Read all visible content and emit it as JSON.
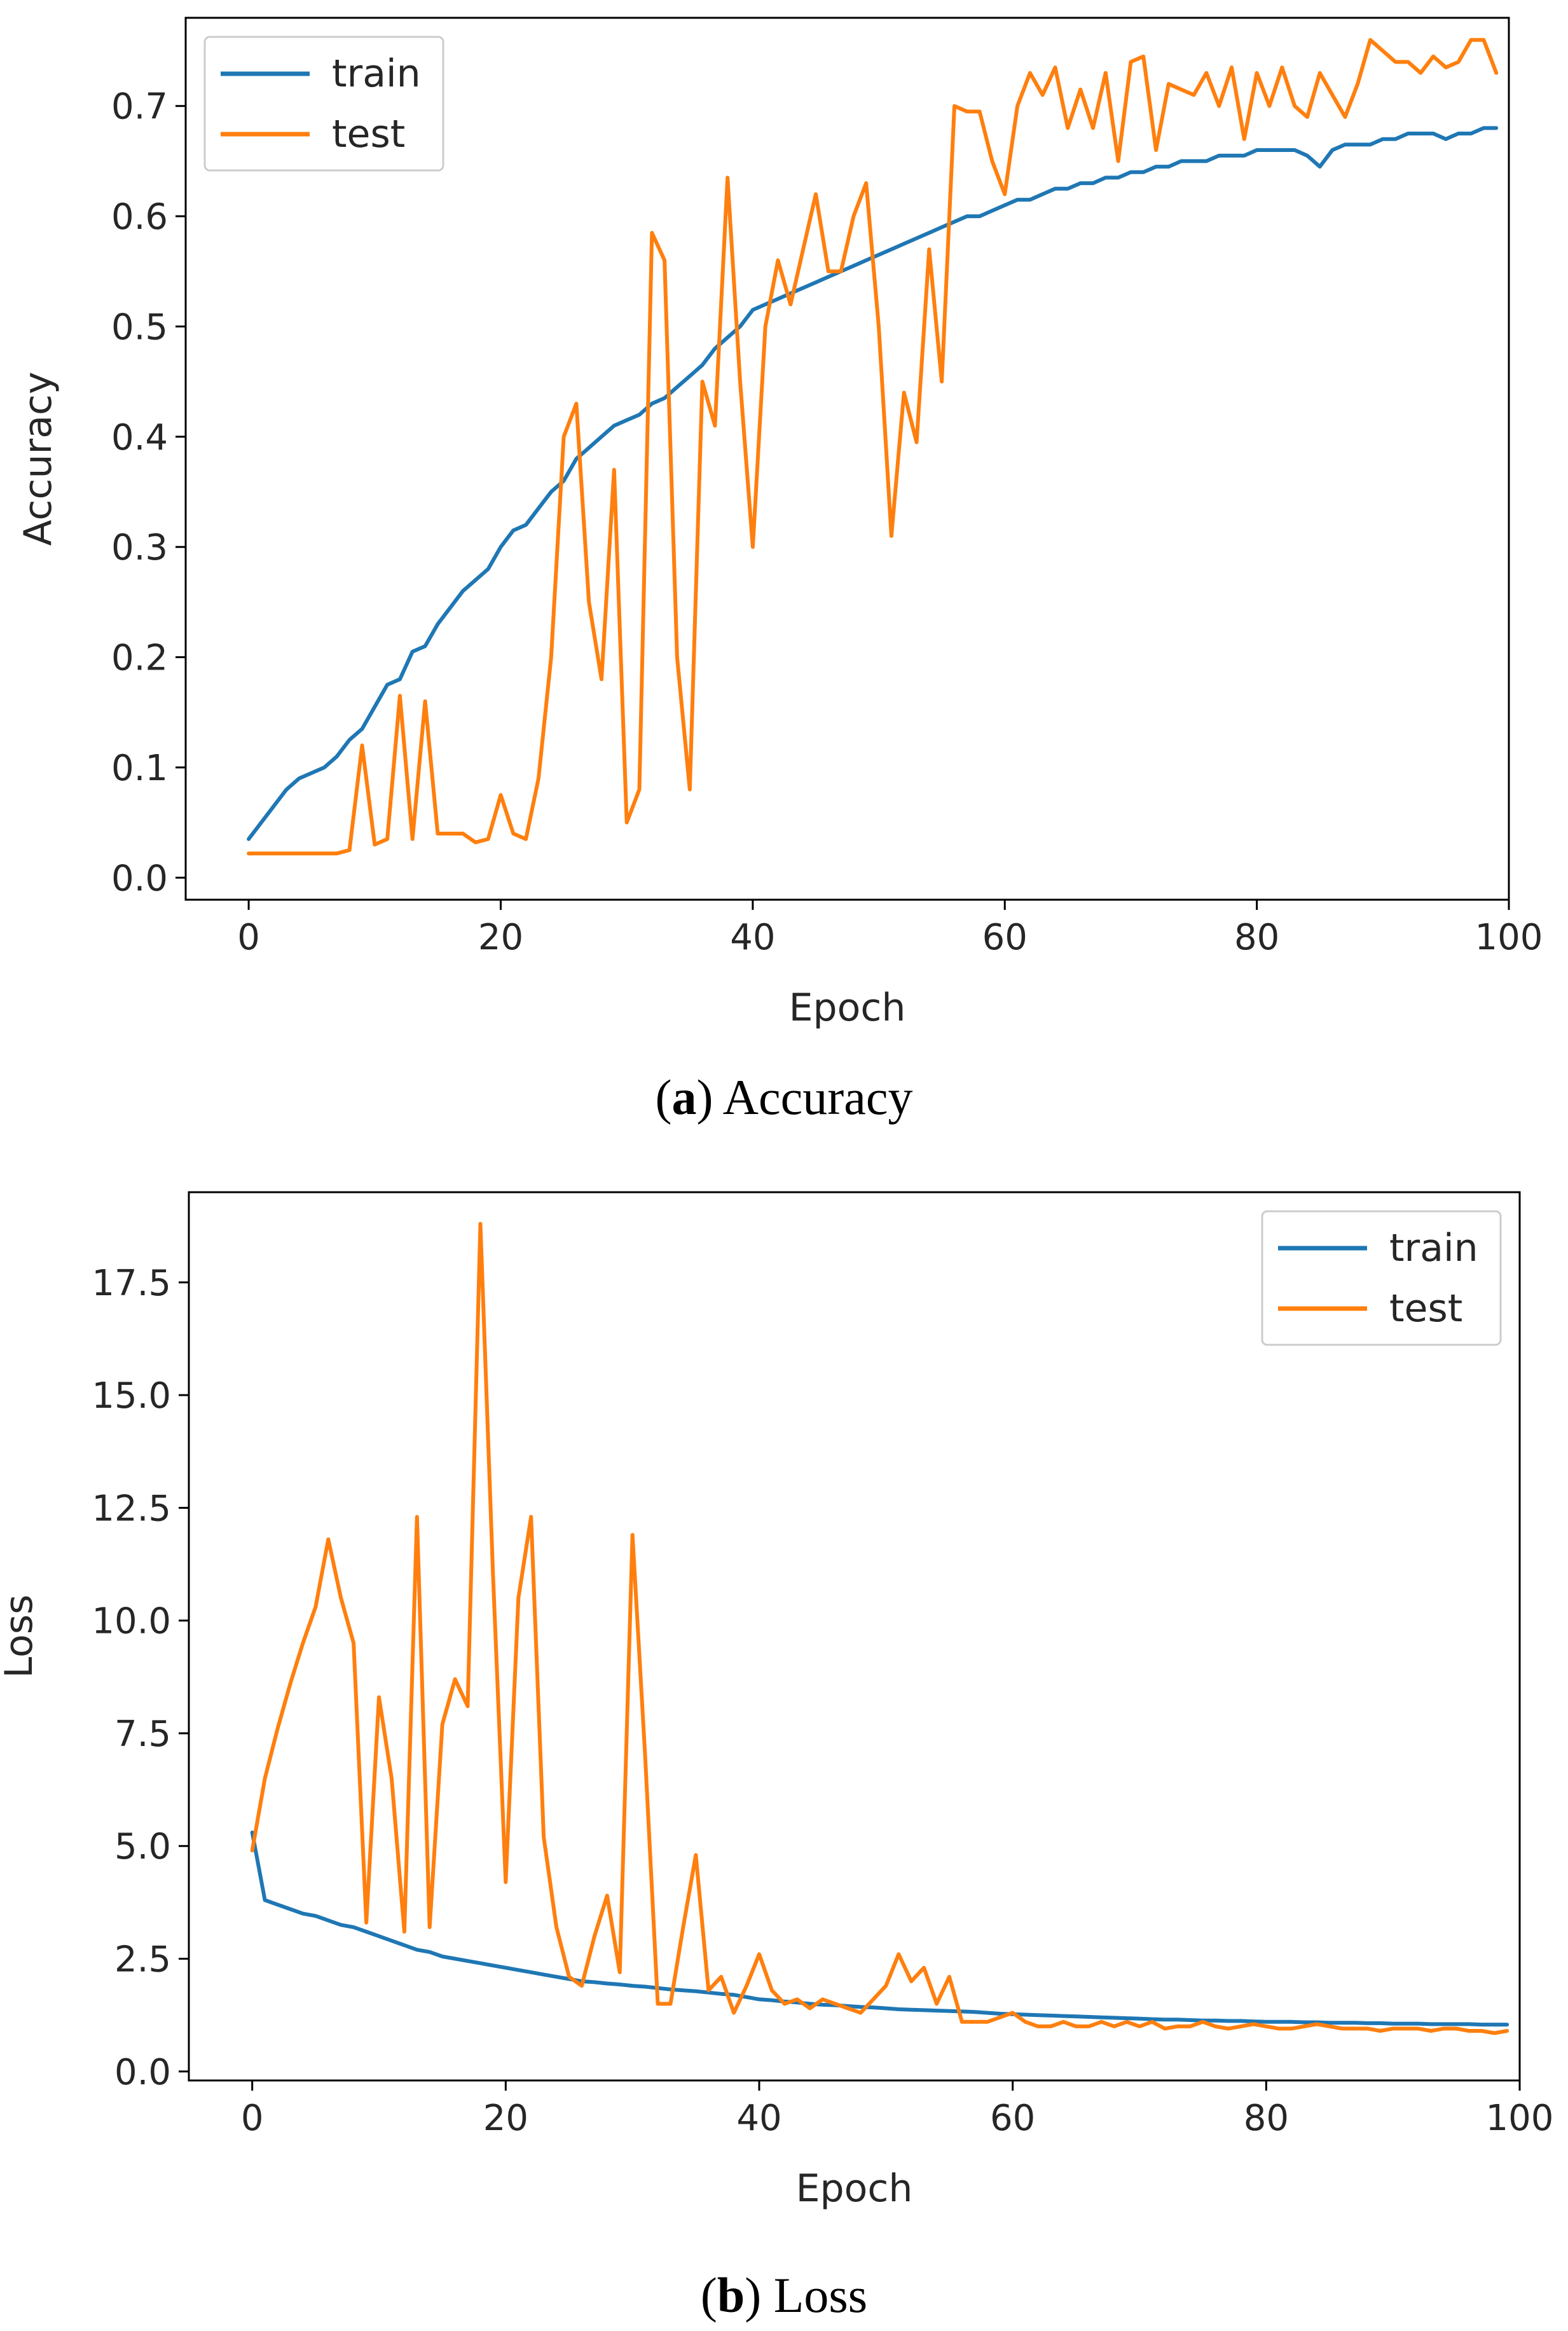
{
  "colors": {
    "train": "#1f77b4",
    "test": "#ff7f0e",
    "axis": "#000000"
  },
  "chart_data": [
    {
      "type": "line",
      "caption_letter": "a",
      "caption_text": " Accuracy",
      "xlabel": "Epoch",
      "ylabel": "Accuracy",
      "xlim": [
        -5,
        100
      ],
      "ylim": [
        -0.02,
        0.78
      ],
      "xticks": [
        0,
        20,
        40,
        60,
        80,
        100
      ],
      "xtick_labels": [
        "0",
        "20",
        "40",
        "60",
        "80",
        "100"
      ],
      "yticks": [
        0.0,
        0.1,
        0.2,
        0.3,
        0.4,
        0.5,
        0.6,
        0.7
      ],
      "ytick_labels": [
        "0.0",
        "0.1",
        "0.2",
        "0.3",
        "0.4",
        "0.5",
        "0.6",
        "0.7"
      ],
      "legend_position": "top-left",
      "series": [
        {
          "name": "train",
          "key": "train",
          "x": [
            0,
            1,
            2,
            3,
            4,
            5,
            6,
            7,
            8,
            9,
            10,
            11,
            12,
            13,
            14,
            15,
            16,
            17,
            18,
            19,
            20,
            21,
            22,
            23,
            24,
            25,
            26,
            27,
            28,
            29,
            30,
            31,
            32,
            33,
            34,
            35,
            36,
            37,
            38,
            39,
            40,
            41,
            42,
            43,
            44,
            45,
            46,
            47,
            48,
            49,
            50,
            51,
            52,
            53,
            54,
            55,
            56,
            57,
            58,
            59,
            60,
            61,
            62,
            63,
            64,
            65,
            66,
            67,
            68,
            69,
            70,
            71,
            72,
            73,
            74,
            75,
            76,
            77,
            78,
            79,
            80,
            81,
            82,
            83,
            84,
            85,
            86,
            87,
            88,
            89,
            90,
            91,
            92,
            93,
            94,
            95,
            96,
            97,
            98,
            99
          ],
          "y": [
            0.035,
            0.05,
            0.065,
            0.08,
            0.09,
            0.095,
            0.1,
            0.11,
            0.125,
            0.135,
            0.155,
            0.175,
            0.18,
            0.205,
            0.21,
            0.23,
            0.245,
            0.26,
            0.27,
            0.28,
            0.3,
            0.315,
            0.32,
            0.335,
            0.35,
            0.36,
            0.38,
            0.39,
            0.4,
            0.41,
            0.415,
            0.42,
            0.43,
            0.435,
            0.445,
            0.455,
            0.465,
            0.48,
            0.49,
            0.5,
            0.515,
            0.52,
            0.525,
            0.53,
            0.535,
            0.54,
            0.545,
            0.55,
            0.555,
            0.56,
            0.565,
            0.57,
            0.575,
            0.58,
            0.585,
            0.59,
            0.595,
            0.6,
            0.6,
            0.605,
            0.61,
            0.615,
            0.615,
            0.62,
            0.625,
            0.625,
            0.63,
            0.63,
            0.635,
            0.635,
            0.64,
            0.64,
            0.645,
            0.645,
            0.65,
            0.65,
            0.65,
            0.655,
            0.655,
            0.655,
            0.66,
            0.66,
            0.66,
            0.66,
            0.655,
            0.645,
            0.66,
            0.665,
            0.665,
            0.665,
            0.67,
            0.67,
            0.675,
            0.675,
            0.675,
            0.67,
            0.675,
            0.675,
            0.68,
            0.68
          ]
        },
        {
          "name": "test",
          "key": "test",
          "x": [
            0,
            1,
            2,
            3,
            4,
            5,
            6,
            7,
            8,
            9,
            10,
            11,
            12,
            13,
            14,
            15,
            16,
            17,
            18,
            19,
            20,
            21,
            22,
            23,
            24,
            25,
            26,
            27,
            28,
            29,
            30,
            31,
            32,
            33,
            34,
            35,
            36,
            37,
            38,
            39,
            40,
            41,
            42,
            43,
            44,
            45,
            46,
            47,
            48,
            49,
            50,
            51,
            52,
            53,
            54,
            55,
            56,
            57,
            58,
            59,
            60,
            61,
            62,
            63,
            64,
            65,
            66,
            67,
            68,
            69,
            70,
            71,
            72,
            73,
            74,
            75,
            76,
            77,
            78,
            79,
            80,
            81,
            82,
            83,
            84,
            85,
            86,
            87,
            88,
            89,
            90,
            91,
            92,
            93,
            94,
            95,
            96,
            97,
            98,
            99
          ],
          "y": [
            0.022,
            0.022,
            0.022,
            0.022,
            0.022,
            0.022,
            0.022,
            0.022,
            0.025,
            0.12,
            0.03,
            0.035,
            0.165,
            0.035,
            0.16,
            0.04,
            0.04,
            0.04,
            0.032,
            0.035,
            0.075,
            0.04,
            0.035,
            0.09,
            0.2,
            0.4,
            0.43,
            0.25,
            0.18,
            0.37,
            0.05,
            0.08,
            0.585,
            0.56,
            0.2,
            0.08,
            0.45,
            0.41,
            0.635,
            0.45,
            0.3,
            0.5,
            0.56,
            0.52,
            0.57,
            0.62,
            0.55,
            0.55,
            0.6,
            0.63,
            0.5,
            0.31,
            0.44,
            0.395,
            0.57,
            0.45,
            0.7,
            0.695,
            0.695,
            0.65,
            0.62,
            0.7,
            0.73,
            0.71,
            0.735,
            0.68,
            0.715,
            0.68,
            0.73,
            0.65,
            0.74,
            0.745,
            0.66,
            0.72,
            0.715,
            0.71,
            0.73,
            0.7,
            0.735,
            0.67,
            0.73,
            0.7,
            0.735,
            0.7,
            0.69,
            0.73,
            0.71,
            0.69,
            0.72,
            0.76,
            0.75,
            0.74,
            0.74,
            0.73,
            0.745,
            0.735,
            0.74,
            0.76,
            0.76,
            0.73
          ]
        }
      ]
    },
    {
      "type": "line",
      "caption_letter": "b",
      "caption_text": " Loss",
      "xlabel": "Epoch",
      "ylabel": "Loss",
      "xlim": [
        -5,
        100
      ],
      "ylim": [
        -0.2,
        19.5
      ],
      "xticks": [
        0,
        20,
        40,
        60,
        80,
        100
      ],
      "xtick_labels": [
        "0",
        "20",
        "40",
        "60",
        "80",
        "100"
      ],
      "yticks": [
        0.0,
        2.5,
        5.0,
        7.5,
        10.0,
        12.5,
        15.0,
        17.5
      ],
      "ytick_labels": [
        "0.0",
        "2.5",
        "5.0",
        "7.5",
        "10.0",
        "12.5",
        "15.0",
        "17.5"
      ],
      "legend_position": "top-right",
      "series": [
        {
          "name": "train",
          "key": "train",
          "x": [
            0,
            1,
            2,
            3,
            4,
            5,
            6,
            7,
            8,
            9,
            10,
            11,
            12,
            13,
            14,
            15,
            16,
            17,
            18,
            19,
            20,
            21,
            22,
            23,
            24,
            25,
            26,
            27,
            28,
            29,
            30,
            31,
            32,
            33,
            34,
            35,
            36,
            37,
            38,
            39,
            40,
            41,
            42,
            43,
            44,
            45,
            46,
            47,
            48,
            49,
            50,
            51,
            52,
            53,
            54,
            55,
            56,
            57,
            58,
            59,
            60,
            61,
            62,
            63,
            64,
            65,
            66,
            67,
            68,
            69,
            70,
            71,
            72,
            73,
            74,
            75,
            76,
            77,
            78,
            79,
            80,
            81,
            82,
            83,
            84,
            85,
            86,
            87,
            88,
            89,
            90,
            91,
            92,
            93,
            94,
            95,
            96,
            97,
            98,
            99
          ],
          "y": [
            5.3,
            3.8,
            3.7,
            3.6,
            3.5,
            3.45,
            3.35,
            3.25,
            3.2,
            3.1,
            3.0,
            2.9,
            2.8,
            2.7,
            2.65,
            2.55,
            2.5,
            2.45,
            2.4,
            2.35,
            2.3,
            2.25,
            2.2,
            2.15,
            2.1,
            2.05,
            2.0,
            1.98,
            1.95,
            1.93,
            1.9,
            1.88,
            1.85,
            1.82,
            1.8,
            1.78,
            1.75,
            1.72,
            1.7,
            1.65,
            1.6,
            1.58,
            1.55,
            1.53,
            1.5,
            1.48,
            1.47,
            1.45,
            1.43,
            1.42,
            1.4,
            1.38,
            1.37,
            1.36,
            1.35,
            1.34,
            1.33,
            1.32,
            1.3,
            1.28,
            1.27,
            1.26,
            1.25,
            1.24,
            1.23,
            1.22,
            1.21,
            1.2,
            1.19,
            1.18,
            1.17,
            1.16,
            1.15,
            1.15,
            1.14,
            1.13,
            1.13,
            1.12,
            1.12,
            1.11,
            1.1,
            1.1,
            1.1,
            1.09,
            1.09,
            1.08,
            1.08,
            1.08,
            1.07,
            1.07,
            1.06,
            1.06,
            1.06,
            1.05,
            1.05,
            1.05,
            1.05,
            1.04,
            1.04,
            1.04
          ]
        },
        {
          "name": "test",
          "key": "test",
          "x": [
            0,
            1,
            2,
            3,
            4,
            5,
            6,
            7,
            8,
            9,
            10,
            11,
            12,
            13,
            14,
            15,
            16,
            17,
            18,
            19,
            20,
            21,
            22,
            23,
            24,
            25,
            26,
            27,
            28,
            29,
            30,
            31,
            32,
            33,
            34,
            35,
            36,
            37,
            38,
            39,
            40,
            41,
            42,
            43,
            44,
            45,
            46,
            47,
            48,
            49,
            50,
            51,
            52,
            53,
            54,
            55,
            56,
            57,
            58,
            59,
            60,
            61,
            62,
            63,
            64,
            65,
            66,
            67,
            68,
            69,
            70,
            71,
            72,
            73,
            74,
            75,
            76,
            77,
            78,
            79,
            80,
            81,
            82,
            83,
            84,
            85,
            86,
            87,
            88,
            89,
            90,
            91,
            92,
            93,
            94,
            95,
            96,
            97,
            98,
            99
          ],
          "y": [
            4.9,
            6.5,
            7.6,
            8.6,
            9.5,
            10.3,
            11.8,
            10.5,
            9.5,
            3.3,
            8.3,
            6.5,
            3.1,
            12.3,
            3.2,
            7.7,
            8.7,
            8.1,
            18.8,
            11.0,
            4.2,
            10.5,
            12.3,
            5.2,
            3.2,
            2.1,
            1.9,
            3.0,
            3.9,
            2.2,
            11.9,
            7.0,
            1.5,
            1.5,
            3.2,
            4.8,
            1.8,
            2.1,
            1.3,
            1.9,
            2.6,
            1.8,
            1.5,
            1.6,
            1.4,
            1.6,
            1.5,
            1.4,
            1.3,
            1.6,
            1.9,
            2.6,
            2.0,
            2.3,
            1.5,
            2.1,
            1.1,
            1.1,
            1.1,
            1.2,
            1.3,
            1.1,
            1.0,
            1.0,
            1.1,
            1.0,
            1.0,
            1.1,
            1.0,
            1.1,
            1.0,
            1.1,
            0.95,
            1.0,
            1.0,
            1.1,
            1.0,
            0.95,
            1.0,
            1.05,
            1.0,
            0.95,
            0.95,
            1.0,
            1.05,
            1.0,
            0.95,
            0.95,
            0.95,
            0.9,
            0.95,
            0.95,
            0.95,
            0.9,
            0.95,
            0.95,
            0.9,
            0.9,
            0.85,
            0.9
          ]
        }
      ]
    }
  ]
}
